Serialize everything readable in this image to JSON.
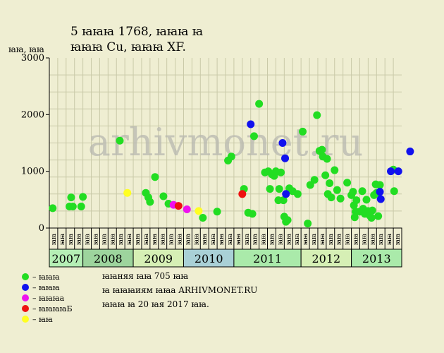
{
  "chart_data": {
    "type": "scatter",
    "title_line1": "5 ꙗꙗꙗ 1768, ꙗꙗꙗ ꙗ",
    "title_line2": "ꙗꙗꙗ Cu, ꙗꙗꙗ XF.",
    "ylabel": "ꙗꙗ, ꙗꙗ",
    "ylim": [
      0,
      3000
    ],
    "yticks": [
      0,
      1000,
      2000,
      3000
    ],
    "ytick_labels": [
      "0",
      "1000",
      "2000",
      "3000"
    ],
    "grid": true,
    "month_labels": [
      "ꙗꙗ",
      "ꙗꙗ",
      "ꙗꙗ",
      "ꙗꙗ",
      "ꙗꙗ",
      "ꙗꙗ",
      "ꙗꙗ",
      "ꙗꙗ",
      "ꙗꙗ",
      "ꙗꙗ",
      "ꙗꙗ",
      "ꙗꙗ",
      "ꙗꙗ",
      "ꙗꙗ",
      "ꙗꙗ",
      "ꙗꙗ",
      "ꙗꙗ",
      "ꙗꙗ",
      "ꙗꙗ",
      "ꙗꙗ",
      "ꙗꙗ",
      "ꙗꙗ",
      "ꙗꙗ",
      "ꙗꙗ",
      "ꙗꙗ",
      "ꙗꙗ",
      "ꙗꙗ",
      "ꙗꙗ",
      "ꙗꙗ",
      "ꙗꙗ",
      "ꙗꙗ",
      "ꙗꙗ",
      "ꙗꙗ",
      "ꙗꙗ",
      "ꙗꙗ",
      "ꙗꙗ",
      "ꙗꙗ",
      "ꙗꙗ",
      "ꙗꙗ",
      "ꙗꙗ",
      "ꙗꙗ",
      "ꙗꙗ"
    ],
    "years": [
      {
        "label": "2007",
        "start": 0,
        "end": 4,
        "color": "#b5efb5"
      },
      {
        "label": "2008",
        "start": 4,
        "end": 10,
        "color": "#9dd49d"
      },
      {
        "label": "2009",
        "start": 10,
        "end": 16,
        "color": "#d6efb5"
      },
      {
        "label": "2010",
        "start": 16,
        "end": 22,
        "color": "#a9d0d6"
      },
      {
        "label": "2011",
        "start": 22,
        "end": 30,
        "color": "#aaeaaa"
      },
      {
        "label": "2012",
        "start": 30,
        "end": 36,
        "color": "#d6efb5"
      },
      {
        "label": "2013",
        "start": 36,
        "end": 42,
        "color": "#aaeaaa"
      }
    ],
    "series": [
      {
        "name": "ꙗ ꙗꙗꙗ",
        "key": "green",
        "color": "#22dd22",
        "points": [
          [
            0.4,
            350
          ],
          [
            2.4,
            380
          ],
          [
            2.6,
            540
          ],
          [
            2.8,
            380
          ],
          [
            3.8,
            380
          ],
          [
            4.0,
            550
          ],
          [
            8.4,
            1540
          ],
          [
            11.5,
            620
          ],
          [
            11.8,
            540
          ],
          [
            12.0,
            460
          ],
          [
            12.6,
            900
          ],
          [
            13.6,
            560
          ],
          [
            14.2,
            430
          ],
          [
            18.3,
            180
          ],
          [
            20.0,
            290
          ],
          [
            21.3,
            1190
          ],
          [
            21.7,
            1260
          ],
          [
            23.2,
            690
          ],
          [
            23.7,
            270
          ],
          [
            24.2,
            250
          ],
          [
            24.4,
            1620
          ],
          [
            25.0,
            2190
          ],
          [
            25.7,
            980
          ],
          [
            26.1,
            1000
          ],
          [
            26.3,
            690
          ],
          [
            26.5,
            950
          ],
          [
            26.8,
            920
          ],
          [
            27.0,
            1000
          ],
          [
            27.3,
            490
          ],
          [
            27.4,
            690
          ],
          [
            27.6,
            980
          ],
          [
            27.9,
            490
          ],
          [
            28.0,
            200
          ],
          [
            28.2,
            110
          ],
          [
            28.4,
            140
          ],
          [
            28.6,
            700
          ],
          [
            29.0,
            650
          ],
          [
            29.6,
            600
          ],
          [
            30.2,
            1700
          ],
          [
            30.8,
            80
          ],
          [
            31.1,
            760
          ],
          [
            31.6,
            850
          ],
          [
            31.9,
            1990
          ],
          [
            32.2,
            1360
          ],
          [
            32.5,
            1380
          ],
          [
            32.6,
            1260
          ],
          [
            32.9,
            930
          ],
          [
            33.1,
            1220
          ],
          [
            33.2,
            600
          ],
          [
            33.4,
            790
          ],
          [
            33.6,
            540
          ],
          [
            34.0,
            1020
          ],
          [
            34.3,
            670
          ],
          [
            34.7,
            520
          ],
          [
            35.5,
            800
          ],
          [
            36.0,
            580
          ],
          [
            36.2,
            640
          ],
          [
            36.3,
            400
          ],
          [
            36.4,
            190
          ],
          [
            36.5,
            290
          ],
          [
            36.6,
            490
          ],
          [
            37.0,
            290
          ],
          [
            37.3,
            650
          ],
          [
            37.4,
            340
          ],
          [
            37.6,
            250
          ],
          [
            37.8,
            500
          ],
          [
            38.0,
            300
          ],
          [
            38.2,
            220
          ],
          [
            38.4,
            180
          ],
          [
            38.5,
            310
          ],
          [
            38.7,
            580
          ],
          [
            38.9,
            770
          ],
          [
            39.0,
            620
          ],
          [
            39.2,
            210
          ],
          [
            39.4,
            760
          ],
          [
            41.0,
            1030
          ],
          [
            41.1,
            650
          ]
        ]
      },
      {
        "name": "ꙗ ꙗꙗꙗ",
        "key": "blue",
        "color": "#1111ee",
        "points": [
          [
            24.0,
            1830
          ],
          [
            27.8,
            1500
          ],
          [
            28.1,
            1230
          ],
          [
            28.2,
            600
          ],
          [
            39.4,
            640
          ],
          [
            39.5,
            510
          ],
          [
            40.7,
            1000
          ],
          [
            41.6,
            1000
          ],
          [
            43.0,
            1350
          ]
        ]
      },
      {
        "name": "ꙗ ꙗꙗꙗ а",
        "key": "magenta",
        "color": "#ee11ee",
        "points": [
          [
            14.8,
            410
          ],
          [
            16.4,
            330
          ]
        ]
      },
      {
        "name": "ꙗ ꙗꙗꙗꙗБ",
        "key": "red",
        "color": "#ee1111",
        "points": [
          [
            15.4,
            390
          ],
          [
            23.0,
            600
          ]
        ]
      },
      {
        "name": "ꙗ ꙗꙗ",
        "key": "yellow",
        "color": "#ffff22",
        "points": [
          [
            9.3,
            620
          ],
          [
            17.8,
            300
          ]
        ]
      }
    ]
  },
  "watermark": "arhivmonet.ru",
  "legend": [
    {
      "label": "– ꙗꙗꙗ",
      "color": "#22dd22"
    },
    {
      "label": "– ꙗꙗꙗ",
      "color": "#1111ee"
    },
    {
      "label": "– ꙗꙗꙗа",
      "color": "#ee11ee"
    },
    {
      "label": "– ꙗꙗꙗꙗБ",
      "color": "#ee1111"
    },
    {
      "label": "– ꙗꙗ",
      "color": "#ffff22"
    }
  ],
  "notes": [
    "ꙗꙗняя ꙗꙗ 705 ꙗꙗ",
    "ꙗ ꙗꙗꙗиям ꙗꙗа ARHIVMONET.RU",
    "ꙗꙗꙗ ꙗ 20 ꙗя 2017 ꙗꙗ."
  ]
}
